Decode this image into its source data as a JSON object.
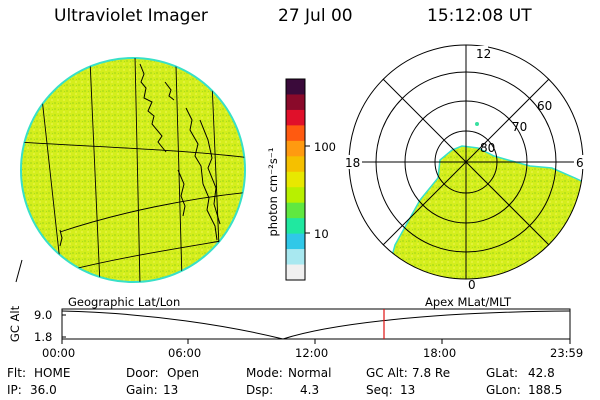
{
  "header": {
    "title": "Ultraviolet Imager",
    "date": "27 Jul 00",
    "time": "15:12:08 UT"
  },
  "colorbar": {
    "unit_label": "photon cm⁻²s⁻¹",
    "ticks": [
      "100",
      "10"
    ],
    "colors": [
      "#3a0a3a",
      "#8a0a2a",
      "#e0102a",
      "#ff5a10",
      "#ff9a10",
      "#f5c000",
      "#e8e800",
      "#b8f000",
      "#60e840",
      "#20e8a0",
      "#30c8e8",
      "#a8e8f0",
      "#f0f0f0"
    ]
  },
  "geo_panel": {
    "label": "Geographic Lat/Lon",
    "fill_color": "#d2ee1a",
    "edge_color": "#30e0c0"
  },
  "polar_panel": {
    "label": "Apex MLat/MLT",
    "mlt_labels": [
      "12",
      "18",
      "6",
      "0"
    ],
    "mlat_labels": [
      "60",
      "70",
      "80"
    ],
    "fill_color": "#d2ee1a"
  },
  "altitude_plot": {
    "ylabel": "GC Alt",
    "ytick_top": "9.0",
    "ytick_bottom": "1.8",
    "xticks": [
      "00:00",
      "06:00",
      "12:00",
      "18:00",
      "23:59"
    ],
    "current_marker_color": "#e01010"
  },
  "status": {
    "flt_label": "Flt:",
    "flt_value": "HOME",
    "ip_label": "IP:",
    "ip_value": "36.0",
    "door_label": "Door:",
    "door_value": "Open",
    "gain_label": "Gain:",
    "gain_value": "13",
    "mode_label": "Mode:",
    "mode_value": "Normal",
    "dsp_label": "Dsp:",
    "dsp_value": "4.3",
    "gcalt_label": "GC Alt:",
    "gcalt_value": "7.8 Re",
    "seq_label": "Seq:",
    "seq_value": "13",
    "glat_label": "GLat:",
    "glat_value": "42.8",
    "glon_label": "GLon:",
    "glon_value": "188.5"
  }
}
